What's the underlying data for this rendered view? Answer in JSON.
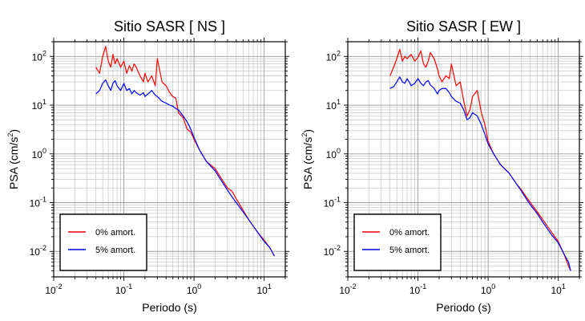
{
  "chart_data": [
    {
      "type": "line",
      "title": "Sitio SASR [ NS ]",
      "xlabel": "Periodo (s)",
      "ylabel_main": "PSA (cm/s",
      "ylabel_sup": "2",
      "ylabel_close": ")",
      "x_scale": "log",
      "y_scale": "log",
      "xlim": [
        0.01,
        20
      ],
      "ylim": [
        0.003,
        200
      ],
      "grid": true,
      "legend_position": "bottom-left",
      "xticks": [
        {
          "base": "10",
          "exp": "-2"
        },
        {
          "base": "10",
          "exp": "-1"
        },
        {
          "base": "10",
          "exp": "0"
        },
        {
          "base": "10",
          "exp": "1"
        }
      ],
      "yticks": [
        {
          "base": "10",
          "exp": "-2"
        },
        {
          "base": "10",
          "exp": "-1"
        },
        {
          "base": "10",
          "exp": "0"
        },
        {
          "base": "10",
          "exp": "1"
        },
        {
          "base": "10",
          "exp": "2"
        }
      ],
      "series": [
        {
          "name": "0% amort.",
          "color": "#ff0000",
          "x": [
            0.04,
            0.045,
            0.05,
            0.055,
            0.06,
            0.065,
            0.07,
            0.075,
            0.08,
            0.09,
            0.1,
            0.11,
            0.12,
            0.13,
            0.14,
            0.15,
            0.17,
            0.19,
            0.2,
            0.22,
            0.25,
            0.28,
            0.3,
            0.35,
            0.4,
            0.45,
            0.5,
            0.55,
            0.6,
            0.7,
            0.8,
            0.9,
            1.0,
            1.2,
            1.5,
            2.0,
            2.5,
            3.0,
            3.5,
            4.0,
            5.0,
            6.0,
            8.0,
            10.0,
            12.0,
            14.0
          ],
          "y": [
            60,
            45,
            100,
            160,
            80,
            60,
            110,
            70,
            90,
            60,
            80,
            45,
            65,
            50,
            70,
            60,
            40,
            30,
            45,
            30,
            40,
            25,
            90,
            30,
            25,
            18,
            15,
            14,
            7,
            5.5,
            3.2,
            2.8,
            2,
            1.2,
            0.7,
            0.5,
            0.3,
            0.2,
            0.17,
            0.12,
            0.07,
            0.045,
            0.025,
            0.017,
            0.012,
            0.008
          ]
        },
        {
          "name": "5% amort.",
          "color": "#0000ff",
          "x": [
            0.04,
            0.045,
            0.05,
            0.055,
            0.06,
            0.065,
            0.07,
            0.075,
            0.08,
            0.09,
            0.1,
            0.11,
            0.12,
            0.13,
            0.14,
            0.15,
            0.17,
            0.19,
            0.2,
            0.22,
            0.25,
            0.28,
            0.3,
            0.35,
            0.4,
            0.45,
            0.5,
            0.55,
            0.6,
            0.7,
            0.8,
            0.9,
            1.0,
            1.2,
            1.5,
            2.0,
            2.5,
            3.0,
            3.5,
            4.0,
            5.0,
            6.0,
            8.0,
            10.0,
            12.0,
            14.0
          ],
          "y": [
            17,
            20,
            28,
            33,
            25,
            20,
            28,
            32,
            25,
            20,
            28,
            20,
            22,
            17,
            20,
            18,
            16,
            18,
            15,
            17,
            20,
            16,
            15,
            12,
            11,
            10,
            9.5,
            8.5,
            8,
            6,
            4.5,
            3.2,
            2.2,
            1.2,
            0.7,
            0.45,
            0.27,
            0.18,
            0.13,
            0.1,
            0.065,
            0.045,
            0.025,
            0.016,
            0.012,
            0.008
          ]
        }
      ]
    },
    {
      "type": "line",
      "title": "Sitio SASR [ EW ]",
      "xlabel": "Periodo (s)",
      "ylabel_main": "PSA (cm/s",
      "ylabel_sup": "2",
      "ylabel_close": ")",
      "x_scale": "log",
      "y_scale": "log",
      "xlim": [
        0.01,
        20
      ],
      "ylim": [
        0.003,
        200
      ],
      "grid": true,
      "legend_position": "bottom-left",
      "xticks": [
        {
          "base": "10",
          "exp": "-2"
        },
        {
          "base": "10",
          "exp": "-1"
        },
        {
          "base": "10",
          "exp": "0"
        },
        {
          "base": "10",
          "exp": "1"
        }
      ],
      "yticks": [
        {
          "base": "10",
          "exp": "-2"
        },
        {
          "base": "10",
          "exp": "-1"
        },
        {
          "base": "10",
          "exp": "0"
        },
        {
          "base": "10",
          "exp": "1"
        },
        {
          "base": "10",
          "exp": "2"
        }
      ],
      "series": [
        {
          "name": "0% amort.",
          "color": "#ff0000",
          "x": [
            0.04,
            0.045,
            0.05,
            0.055,
            0.06,
            0.065,
            0.07,
            0.075,
            0.08,
            0.09,
            0.1,
            0.11,
            0.12,
            0.13,
            0.14,
            0.15,
            0.17,
            0.19,
            0.2,
            0.22,
            0.25,
            0.28,
            0.3,
            0.35,
            0.4,
            0.45,
            0.5,
            0.55,
            0.6,
            0.7,
            0.8,
            0.9,
            1.0,
            1.2,
            1.5,
            2.0,
            2.5,
            3.0,
            3.5,
            4.0,
            5.0,
            6.0,
            8.0,
            10.0,
            12.0,
            14.0,
            15.0
          ],
          "y": [
            40,
            60,
            90,
            140,
            80,
            100,
            90,
            100,
            110,
            80,
            95,
            130,
            70,
            60,
            80,
            120,
            90,
            55,
            40,
            30,
            40,
            35,
            70,
            25,
            30,
            12,
            6,
            8,
            15,
            20,
            7,
            4,
            1.8,
            1.0,
            0.6,
            0.4,
            0.25,
            0.18,
            0.13,
            0.1,
            0.065,
            0.045,
            0.025,
            0.016,
            0.009,
            0.005,
            0.004
          ]
        },
        {
          "name": "5% amort.",
          "color": "#0000ff",
          "x": [
            0.04,
            0.045,
            0.05,
            0.055,
            0.06,
            0.065,
            0.07,
            0.075,
            0.08,
            0.09,
            0.1,
            0.11,
            0.12,
            0.13,
            0.14,
            0.15,
            0.17,
            0.19,
            0.2,
            0.22,
            0.25,
            0.28,
            0.3,
            0.35,
            0.4,
            0.45,
            0.5,
            0.55,
            0.6,
            0.7,
            0.8,
            0.9,
            1.0,
            1.2,
            1.5,
            2.0,
            2.5,
            3.0,
            3.5,
            4.0,
            5.0,
            6.0,
            8.0,
            10.0,
            12.0,
            14.0,
            15.0
          ],
          "y": [
            22,
            24,
            30,
            38,
            30,
            28,
            35,
            30,
            25,
            28,
            35,
            28,
            25,
            30,
            32,
            26,
            22,
            17,
            20,
            22,
            22,
            18,
            15,
            12,
            11,
            8,
            5,
            5.5,
            7,
            6,
            4,
            2.5,
            1.6,
            1.0,
            0.6,
            0.4,
            0.25,
            0.17,
            0.12,
            0.09,
            0.06,
            0.04,
            0.022,
            0.015,
            0.009,
            0.006,
            0.004
          ]
        }
      ]
    }
  ]
}
